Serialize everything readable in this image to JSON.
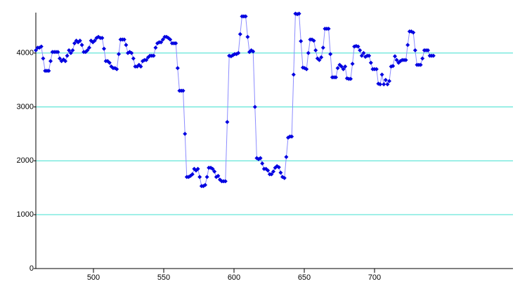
{
  "chart_data": {
    "type": "line",
    "x": [
      459,
      460.3,
      461.6,
      462.9,
      464.2,
      465.6,
      466.9,
      468.2,
      469.5,
      470.8,
      472.1,
      473.4,
      474.7,
      476,
      477.3,
      478.7,
      480,
      481.3,
      482.6,
      483.9,
      485.2,
      486.5,
      487.8,
      489.1,
      490.4,
      491.8,
      493.1,
      494.4,
      495.7,
      497,
      498.3,
      499.6,
      500.9,
      502.2,
      503.5,
      504.9,
      506.2,
      507.5,
      508.8,
      510.1,
      511.4,
      512.7,
      514,
      515.3,
      516.6,
      518,
      519.3,
      520.6,
      521.9,
      523.2,
      524.5,
      525.8,
      527.1,
      528.4,
      529.7,
      531.1,
      532.4,
      533.7,
      535,
      536.3,
      537.6,
      538.9,
      540.2,
      541.5,
      542.8,
      544.2,
      545.5,
      546.8,
      548.1,
      549.4,
      550.7,
      552,
      553.3,
      554.6,
      555.9,
      557.3,
      558.6,
      559.9,
      561.2,
      562.5,
      563.8,
      565.1,
      566.4,
      567.7,
      569,
      570.4,
      571.7,
      573,
      574.3,
      575.6,
      576.9,
      578.2,
      579.5,
      580.8,
      582.1,
      583.5,
      584.8,
      586.1,
      587.4,
      588.7,
      590,
      591.3,
      592.6,
      593.9,
      595.2,
      596.6,
      597.9,
      599.2,
      600.5,
      601.8,
      603.1,
      604.4,
      605.7,
      607,
      608.3,
      609.7,
      611,
      612.3,
      613.6,
      614.9,
      616.2,
      617.5,
      618.8,
      620.1,
      621.4,
      622.8,
      624.1,
      625.4,
      626.7,
      628,
      629.3,
      630.6,
      631.9,
      633.2,
      634.5,
      635.9,
      637.2,
      638.5,
      639.8,
      641.1,
      642.4,
      643.7,
      645,
      646.3,
      647.6,
      649,
      650.3,
      651.6,
      652.9,
      654.2,
      655.5,
      656.8,
      658.1,
      659.4,
      660.7,
      662.1,
      663.4,
      664.7,
      666,
      667.3,
      668.6,
      669.9,
      671.2,
      672.5,
      673.8,
      675.2,
      676.5,
      677.8,
      679.1,
      680.4,
      681.7,
      683,
      684.3,
      685.6,
      686.9,
      688.3,
      689.6,
      690.9,
      692.2,
      693.5,
      694.8,
      696.1,
      697.4,
      698.7,
      700,
      701.4,
      702.7,
      704,
      705.3,
      706.6,
      707.9,
      709.2,
      710.5,
      711.8,
      713.1,
      714.5,
      715.8,
      717.1,
      718.4,
      719.7,
      721,
      722.3,
      723.6,
      724.9,
      726.2,
      727.6,
      728.9,
      730.2,
      731.5,
      732.8,
      734.1,
      735.4,
      736.7,
      738,
      739.3,
      740.6,
      741.9
    ],
    "values": [
      4050,
      4100,
      4100,
      4120,
      3900,
      3670,
      3670,
      3670,
      3850,
      4020,
      4020,
      4020,
      4020,
      3900,
      3850,
      3880,
      3850,
      3950,
      4050,
      4000,
      4050,
      4180,
      4230,
      4200,
      4230,
      4150,
      4020,
      4020,
      4050,
      4100,
      4230,
      4200,
      4230,
      4280,
      4300,
      4280,
      4280,
      4080,
      3850,
      3850,
      3820,
      3750,
      3720,
      3720,
      3700,
      3980,
      4250,
      4250,
      4250,
      4150,
      4000,
      4020,
      4000,
      3900,
      3750,
      3750,
      3780,
      3750,
      3850,
      3870,
      3870,
      3920,
      3950,
      3950,
      3950,
      4100,
      4180,
      4200,
      4200,
      4250,
      4300,
      4300,
      4280,
      4250,
      4180,
      4180,
      4180,
      3720,
      3300,
      3300,
      3300,
      2500,
      1700,
      1700,
      1720,
      1750,
      1850,
      1820,
      1850,
      1700,
      1530,
      1530,
      1550,
      1700,
      1870,
      1870,
      1850,
      1800,
      1700,
      1720,
      1650,
      1620,
      1620,
      1620,
      2720,
      3950,
      3940,
      3960,
      3980,
      3980,
      4000,
      4350,
      4680,
      4680,
      4680,
      4300,
      4020,
      4050,
      4030,
      3000,
      2050,
      2030,
      2050,
      1950,
      1850,
      1850,
      1820,
      1750,
      1750,
      1800,
      1870,
      1900,
      1880,
      1780,
      1700,
      1680,
      2070,
      2430,
      2450,
      2450,
      3600,
      4730,
      4720,
      4730,
      4220,
      3730,
      3720,
      3700,
      4000,
      4250,
      4250,
      4230,
      4050,
      3900,
      3870,
      3920,
      4100,
      4450,
      4450,
      4450,
      3980,
      3550,
      3550,
      3550,
      3720,
      3780,
      3750,
      3700,
      3750,
      3530,
      3520,
      3520,
      3800,
      4120,
      4130,
      4120,
      4050,
      3950,
      4000,
      3930,
      3950,
      3950,
      3820,
      3700,
      3700,
      3700,
      3430,
      3420,
      3600,
      3420,
      3500,
      3420,
      3480,
      3750,
      3760,
      3940,
      3870,
      3820,
      3850,
      3870,
      3870,
      3870,
      4150,
      4400,
      4400,
      4380,
      4050,
      3780,
      3780,
      3780,
      3900,
      4050,
      4050,
      4050,
      3950,
      3950,
      3950
    ],
    "color": "#0000e0",
    "line_color": "#8c8cff",
    "grid_color": "#40e0d0",
    "xlim": [
      459,
      798.5
    ],
    "xticks": [
      500,
      550,
      600,
      650,
      700
    ],
    "ylim": [
      0,
      4750
    ],
    "yticks": [
      0,
      1000,
      2000,
      3000,
      4000
    ],
    "grid": true
  }
}
